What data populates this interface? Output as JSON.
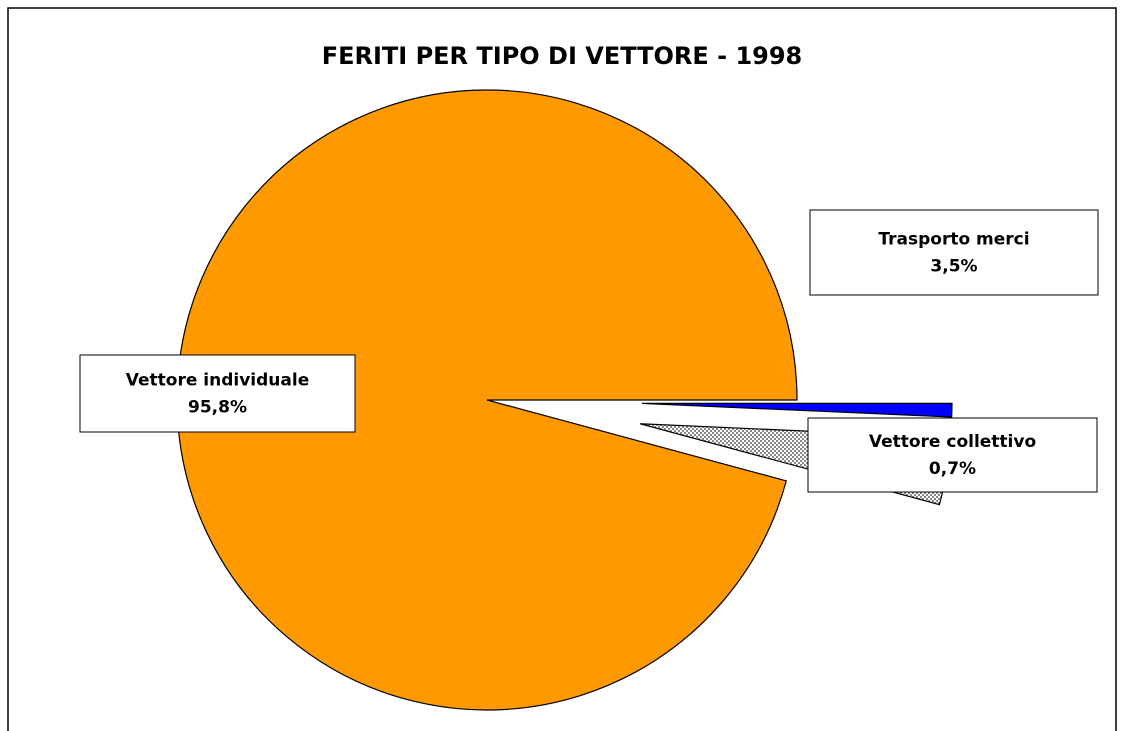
{
  "chart_data": {
    "type": "pie",
    "title": "FERITI PER TIPO DI VETTORE  -  1998",
    "categories": [
      "Vettore individuale",
      "Trasporto merci",
      "Vettore collettivo"
    ],
    "values": [
      95.8,
      3.5,
      0.7
    ],
    "value_labels": [
      "95,8%",
      "3,5%",
      "0,7%"
    ],
    "colors": [
      "#ff9900",
      "#c8c8c8",
      "#0000ff"
    ]
  }
}
